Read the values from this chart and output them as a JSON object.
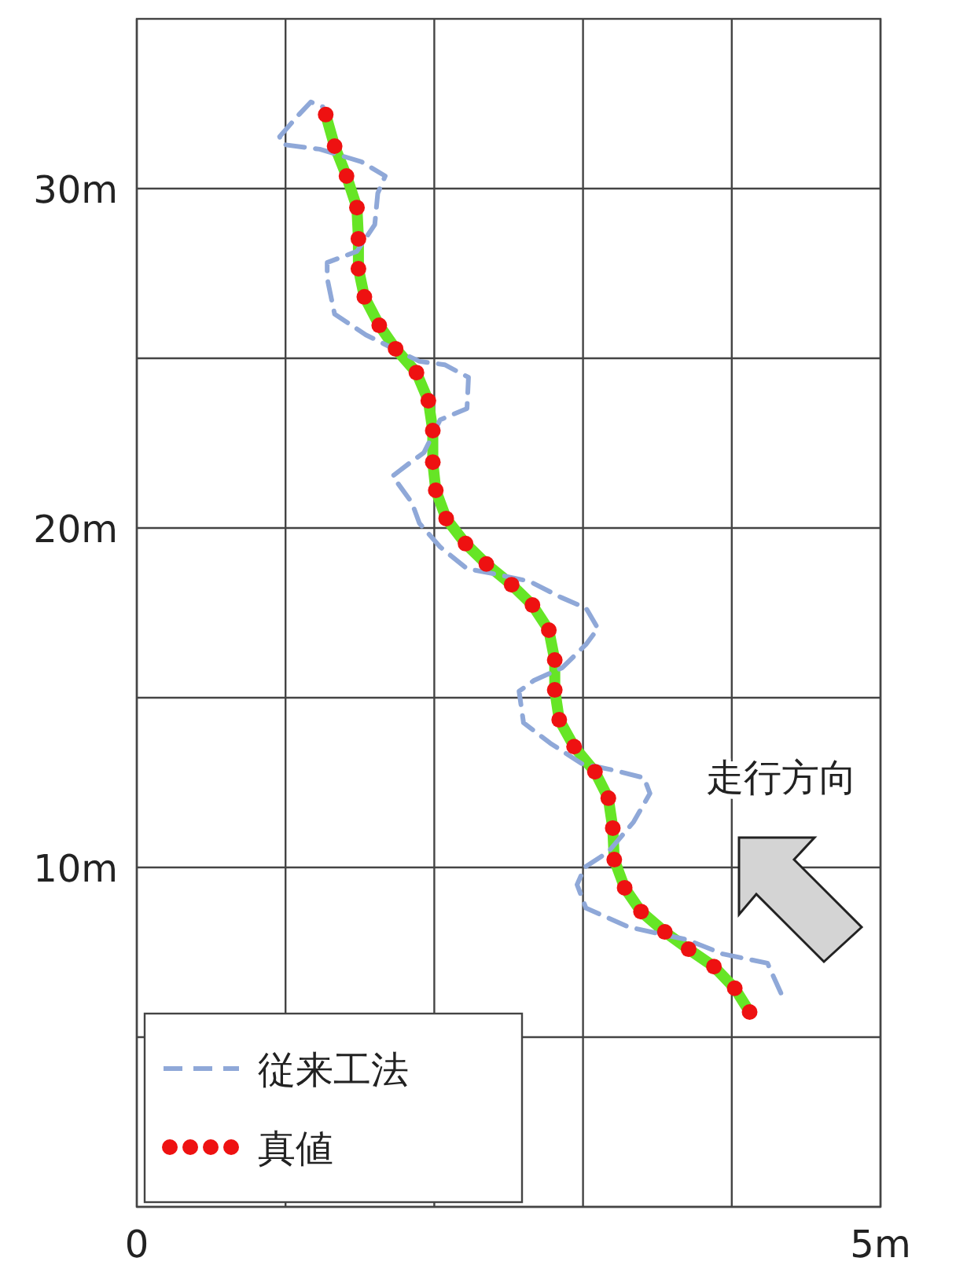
{
  "chart_data": {
    "type": "line",
    "xlim": [
      0,
      5
    ],
    "xticks": [
      0,
      {
        "value": 1,
        "label": null
      },
      {
        "value": 2,
        "label": null
      },
      {
        "value": 3,
        "label": null
      },
      {
        "value": 4,
        "label": null
      },
      {
        "value": 5,
        "label": "5m"
      }
    ],
    "ylim": [
      0,
      35
    ],
    "yticks": [
      {
        "value": 0,
        "label": null
      },
      {
        "value": 5,
        "label": null
      },
      {
        "value": 10,
        "label": "10m"
      },
      {
        "value": 15,
        "label": null
      },
      {
        "value": 20,
        "label": "20m"
      },
      {
        "value": 25,
        "label": null
      },
      {
        "value": 30,
        "label": "30m"
      }
    ],
    "grid": true,
    "legend": "bottom left",
    "annotations": [
      "走行方向"
    ],
    "series": [
      {
        "color": "#66e526",
        "line_style": "solid",
        "x": [
          4.12,
          4.02,
          3.88,
          3.71,
          3.55,
          3.39,
          3.28,
          3.21,
          3.2,
          3.17,
          3.08,
          2.94,
          2.84,
          2.81,
          2.81,
          2.77,
          2.66,
          2.52,
          2.35,
          2.21,
          2.08,
          2.01,
          1.99,
          1.99,
          1.96,
          1.88,
          1.74,
          1.63,
          1.53,
          1.49,
          1.49,
          1.48,
          1.41,
          1.33,
          1.27
        ],
        "values": [
          5.74,
          6.44,
          7.08,
          7.59,
          8.1,
          8.7,
          9.4,
          10.23,
          11.16,
          12.04,
          12.82,
          13.56,
          14.35,
          15.23,
          16.11,
          16.99,
          17.73,
          18.33,
          18.94,
          19.54,
          20.28,
          21.11,
          21.94,
          22.87,
          23.75,
          24.58,
          25.28,
          25.97,
          26.81,
          27.64,
          28.52,
          29.44,
          30.37,
          31.25,
          32.18
        ]
      },
      {
        "name": "従来工法",
        "color": "#8fa8d8",
        "line_style": "dashed",
        "x": [
          4.33,
          4.24,
          3.94,
          3.7,
          3.31,
          3.02,
          2.96,
          3.01,
          3.17,
          3.34,
          3.45,
          3.41,
          3.2,
          2.99,
          2.78,
          2.6,
          2.57,
          2.67,
          2.86,
          3.02,
          3.1,
          3.02,
          2.85,
          2.64,
          2.39,
          2.22,
          2.04,
          1.9,
          1.85,
          1.72,
          1.83,
          1.93,
          2.04,
          2.22,
          2.23,
          2.07,
          1.9,
          1.75,
          1.54,
          1.33,
          1.28,
          1.28,
          1.48,
          1.6,
          1.62,
          1.67,
          1.51,
          1.23,
          0.98,
          0.96,
          1.09,
          1.17,
          1.25
        ],
        "values": [
          6.3,
          7.18,
          7.45,
          7.87,
          8.24,
          8.8,
          9.49,
          10.0,
          10.46,
          11.34,
          12.18,
          12.64,
          12.87,
          13.06,
          13.66,
          14.26,
          15.19,
          15.51,
          15.88,
          16.57,
          17.04,
          17.64,
          17.96,
          18.43,
          18.66,
          18.8,
          19.44,
          20.14,
          20.74,
          21.53,
          21.9,
          22.22,
          23.19,
          23.52,
          24.44,
          24.81,
          24.91,
          25.23,
          25.69,
          26.3,
          27.36,
          27.82,
          28.15,
          28.94,
          29.86,
          30.37,
          30.79,
          31.16,
          31.3,
          31.53,
          32.18,
          32.55,
          32.41
        ]
      },
      {
        "type": "scatter",
        "name": "真値",
        "color": "#ee1111",
        "marker": "circle",
        "x": [
          4.12,
          4.02,
          3.88,
          3.71,
          3.55,
          3.39,
          3.28,
          3.21,
          3.2,
          3.17,
          3.08,
          2.94,
          2.84,
          2.81,
          2.81,
          2.77,
          2.66,
          2.52,
          2.35,
          2.21,
          2.08,
          2.01,
          1.99,
          1.99,
          1.96,
          1.88,
          1.74,
          1.63,
          1.53,
          1.49,
          1.49,
          1.48,
          1.41,
          1.33,
          1.27
        ],
        "values": [
          5.74,
          6.44,
          7.08,
          7.59,
          8.1,
          8.7,
          9.4,
          10.23,
          11.16,
          12.04,
          12.82,
          13.56,
          14.35,
          15.23,
          16.11,
          16.99,
          17.73,
          18.33,
          18.94,
          19.54,
          20.28,
          21.11,
          21.94,
          22.87,
          23.75,
          24.58,
          25.28,
          25.97,
          26.81,
          27.64,
          28.52,
          29.44,
          30.37,
          31.25,
          32.18
        ]
      }
    ]
  }
}
